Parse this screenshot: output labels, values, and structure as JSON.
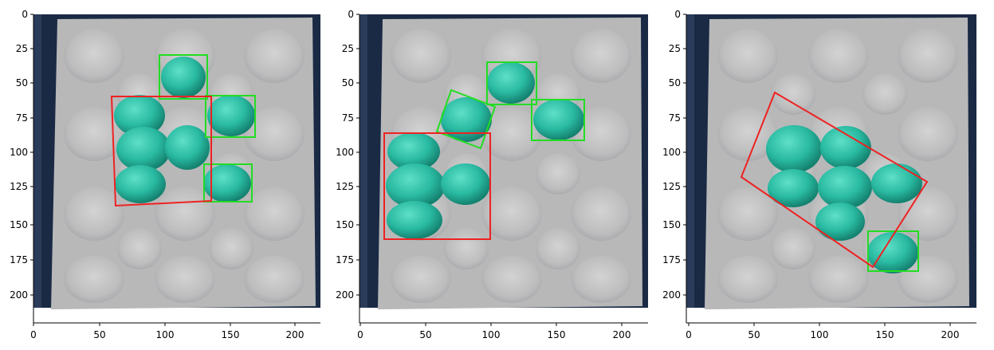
{
  "colors": {
    "background": "#0f1b2e",
    "tray": "#b9b9ba",
    "tray_shadow": "#9e9fa3",
    "fruit": "#29b9a1",
    "fruit_dark": "#1a8f7c",
    "box_single": "#22dd22",
    "box_group": "#ee2222"
  },
  "panels": [
    {
      "x_ticks": [
        "0",
        "50",
        "100",
        "150",
        "200"
      ],
      "y_ticks": [
        "0",
        "25",
        "50",
        "75",
        "100",
        "125",
        "150",
        "175",
        "200"
      ]
    },
    {
      "x_ticks": [
        "0",
        "50",
        "100",
        "150",
        "200"
      ],
      "y_ticks": [
        "0",
        "25",
        "50",
        "75",
        "100",
        "125",
        "150",
        "175",
        "200"
      ]
    },
    {
      "x_ticks": [
        "0",
        "50",
        "100",
        "150",
        "200"
      ],
      "y_ticks": [
        "0",
        "25",
        "50",
        "75",
        "100",
        "125",
        "150",
        "175",
        "200"
      ]
    }
  ]
}
